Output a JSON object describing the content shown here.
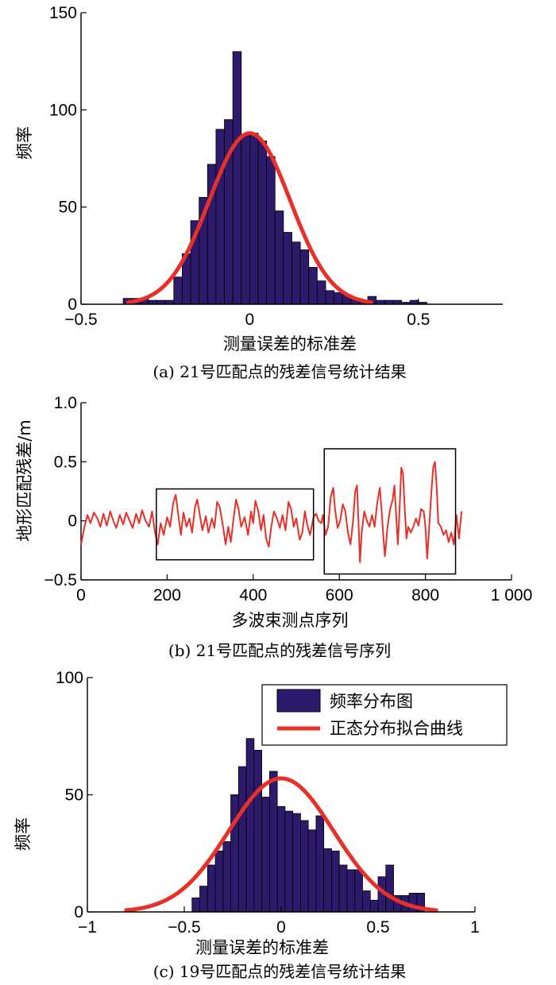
{
  "chart_data": [
    {
      "id": "a",
      "type": "bar",
      "caption": "(a) 21号匹配点的残差信号统计结果",
      "xlabel": "测量误差的标准差",
      "ylabel": "频率",
      "xlim": [
        -0.5,
        0.75
      ],
      "ylim": [
        0,
        150
      ],
      "xticks": [
        -0.5,
        0,
        0.5
      ],
      "xtick_labels": [
        "−0.5",
        "0",
        "0.5"
      ],
      "yticks": [
        0,
        50,
        100,
        150
      ],
      "ytick_labels": [
        "0",
        "50",
        "100",
        "150"
      ],
      "bin_width": 0.025,
      "bins": [
        {
          "x": -0.375,
          "y": 3
        },
        {
          "x": -0.35,
          "y": 3
        },
        {
          "x": -0.325,
          "y": 3
        },
        {
          "x": -0.3,
          "y": 2
        },
        {
          "x": -0.275,
          "y": 2
        },
        {
          "x": -0.25,
          "y": 2
        },
        {
          "x": -0.225,
          "y": 14
        },
        {
          "x": -0.2,
          "y": 26
        },
        {
          "x": -0.175,
          "y": 43
        },
        {
          "x": -0.15,
          "y": 55
        },
        {
          "x": -0.125,
          "y": 72
        },
        {
          "x": -0.1,
          "y": 90
        },
        {
          "x": -0.075,
          "y": 95
        },
        {
          "x": -0.05,
          "y": 130
        },
        {
          "x": -0.025,
          "y": 87
        },
        {
          "x": 0.0,
          "y": 88
        },
        {
          "x": 0.025,
          "y": 84
        },
        {
          "x": 0.05,
          "y": 76
        },
        {
          "x": 0.075,
          "y": 48
        },
        {
          "x": 0.1,
          "y": 37
        },
        {
          "x": 0.125,
          "y": 32
        },
        {
          "x": 0.15,
          "y": 28
        },
        {
          "x": 0.175,
          "y": 19
        },
        {
          "x": 0.2,
          "y": 12
        },
        {
          "x": 0.225,
          "y": 7
        },
        {
          "x": 0.25,
          "y": 6
        },
        {
          "x": 0.275,
          "y": 5
        },
        {
          "x": 0.3,
          "y": 3
        },
        {
          "x": 0.325,
          "y": 2
        },
        {
          "x": 0.35,
          "y": 4
        },
        {
          "x": 0.375,
          "y": 2
        },
        {
          "x": 0.4,
          "y": 2
        },
        {
          "x": 0.425,
          "y": 2
        },
        {
          "x": 0.45,
          "y": 1
        },
        {
          "x": 0.475,
          "y": 2
        },
        {
          "x": 0.5,
          "y": 1
        }
      ],
      "fit": {
        "mu": 0.0,
        "sigma": 0.12,
        "peak": 88,
        "x_range": [
          -0.36,
          0.36
        ]
      },
      "colors": {
        "bars": "#2e1a6b",
        "fit": "#e8302a"
      }
    },
    {
      "id": "b",
      "type": "line",
      "caption": "(b) 21号匹配点的残差信号序列",
      "xlabel": "多波束测点序列",
      "ylabel": "地形匹配残差/m",
      "xlim": [
        0,
        1000
      ],
      "ylim": [
        -0.5,
        1.0
      ],
      "xticks": [
        0,
        200,
        400,
        600,
        800,
        1000
      ],
      "xtick_labels": [
        "0",
        "200",
        "400",
        "600",
        "800",
        "1 000"
      ],
      "yticks": [
        -0.5,
        0,
        0.5,
        1.0
      ],
      "ytick_labels": [
        "−0.5",
        "0",
        "0.5",
        "1.0"
      ],
      "points": [
        [
          0,
          -0.2
        ],
        [
          8,
          -0.05
        ],
        [
          15,
          0.05
        ],
        [
          22,
          -0.02
        ],
        [
          30,
          0.07
        ],
        [
          38,
          0.02
        ],
        [
          45,
          -0.05
        ],
        [
          52,
          0.06
        ],
        [
          60,
          -0.04
        ],
        [
          68,
          0.08
        ],
        [
          75,
          0.0
        ],
        [
          82,
          -0.06
        ],
        [
          90,
          0.05
        ],
        [
          98,
          -0.03
        ],
        [
          105,
          0.07
        ],
        [
          112,
          0.01
        ],
        [
          120,
          -0.06
        ],
        [
          128,
          0.06
        ],
        [
          135,
          -0.02
        ],
        [
          142,
          0.09
        ],
        [
          150,
          0.0
        ],
        [
          158,
          -0.05
        ],
        [
          165,
          0.08
        ],
        [
          172,
          -0.1
        ],
        [
          178,
          -0.2
        ],
        [
          185,
          -0.02
        ],
        [
          192,
          -0.12
        ],
        [
          200,
          0.03
        ],
        [
          207,
          -0.05
        ],
        [
          214,
          0.15
        ],
        [
          220,
          0.22
        ],
        [
          226,
          0.05
        ],
        [
          232,
          -0.12
        ],
        [
          238,
          0.07
        ],
        [
          245,
          -0.05
        ],
        [
          252,
          0.02
        ],
        [
          258,
          -0.1
        ],
        [
          265,
          0.12
        ],
        [
          270,
          0.18
        ],
        [
          276,
          0.05
        ],
        [
          282,
          -0.08
        ],
        [
          290,
          0.04
        ],
        [
          296,
          -0.1
        ],
        [
          304,
          0.02
        ],
        [
          310,
          -0.06
        ],
        [
          316,
          0.16
        ],
        [
          322,
          0.12
        ],
        [
          330,
          -0.05
        ],
        [
          336,
          -0.2
        ],
        [
          342,
          -0.05
        ],
        [
          348,
          -0.18
        ],
        [
          355,
          0.04
        ],
        [
          360,
          0.18
        ],
        [
          366,
          0.1
        ],
        [
          372,
          -0.05
        ],
        [
          380,
          0.03
        ],
        [
          388,
          -0.12
        ],
        [
          395,
          0.08
        ],
        [
          400,
          -0.02
        ],
        [
          405,
          0.17
        ],
        [
          412,
          0.08
        ],
        [
          418,
          -0.08
        ],
        [
          424,
          0.05
        ],
        [
          430,
          -0.15
        ],
        [
          436,
          -0.22
        ],
        [
          442,
          -0.05
        ],
        [
          448,
          0.08
        ],
        [
          455,
          0.02
        ],
        [
          462,
          -0.06
        ],
        [
          468,
          0.05
        ],
        [
          475,
          -0.08
        ],
        [
          482,
          0.16
        ],
        [
          488,
          0.1
        ],
        [
          494,
          -0.05
        ],
        [
          500,
          0.02
        ],
        [
          508,
          -0.16
        ],
        [
          514,
          -0.1
        ],
        [
          520,
          0.08
        ],
        [
          526,
          -0.04
        ],
        [
          532,
          -0.12
        ],
        [
          540,
          0.03
        ],
        [
          546,
          0.06
        ],
        [
          552,
          0.0
        ],
        [
          558,
          -0.02
        ],
        [
          562,
          0.05
        ],
        [
          568,
          -0.12
        ],
        [
          574,
          -0.05
        ],
        [
          580,
          0.2
        ],
        [
          586,
          0.28
        ],
        [
          590,
          0.1
        ],
        [
          596,
          -0.06
        ],
        [
          602,
          0.0
        ],
        [
          608,
          0.14
        ],
        [
          614,
          0.08
        ],
        [
          620,
          -0.1
        ],
        [
          626,
          -0.2
        ],
        [
          632,
          0.0
        ],
        [
          637,
          0.25
        ],
        [
          641,
          0.3
        ],
        [
          645,
          -0.05
        ],
        [
          648,
          -0.35
        ],
        [
          652,
          -0.1
        ],
        [
          658,
          0.08
        ],
        [
          664,
          0.0
        ],
        [
          670,
          -0.05
        ],
        [
          676,
          0.05
        ],
        [
          682,
          -0.05
        ],
        [
          688,
          0.15
        ],
        [
          694,
          0.28
        ],
        [
          698,
          0.1
        ],
        [
          702,
          -0.12
        ],
        [
          706,
          -0.3
        ],
        [
          712,
          -0.05
        ],
        [
          718,
          0.1
        ],
        [
          724,
          0.18
        ],
        [
          728,
          0.3
        ],
        [
          732,
          0.05
        ],
        [
          736,
          -0.2
        ],
        [
          740,
          0.1
        ],
        [
          744,
          0.45
        ],
        [
          748,
          0.4
        ],
        [
          752,
          0.1
        ],
        [
          756,
          -0.15
        ],
        [
          760,
          -0.05
        ],
        [
          766,
          -0.1
        ],
        [
          772,
          -0.05
        ],
        [
          778,
          0.02
        ],
        [
          784,
          -0.04
        ],
        [
          790,
          0.1
        ],
        [
          796,
          0.08
        ],
        [
          800,
          -0.05
        ],
        [
          804,
          -0.32
        ],
        [
          808,
          -0.1
        ],
        [
          814,
          0.25
        ],
        [
          818,
          0.45
        ],
        [
          822,
          0.5
        ],
        [
          826,
          0.3
        ],
        [
          830,
          -0.02
        ],
        [
          836,
          -0.05
        ],
        [
          842,
          -0.12
        ],
        [
          848,
          -0.08
        ],
        [
          854,
          -0.18
        ],
        [
          860,
          -0.1
        ],
        [
          866,
          -0.2
        ],
        [
          872,
          0.05
        ],
        [
          878,
          -0.15
        ],
        [
          884,
          0.08
        ]
      ],
      "boxes": [
        {
          "x": [
            175,
            540
          ],
          "y": [
            -0.33,
            0.27
          ]
        },
        {
          "x": [
            565,
            870
          ],
          "y": [
            -0.45,
            0.61
          ]
        }
      ],
      "colors": {
        "line": "#e8302a",
        "box": "#000000"
      }
    },
    {
      "id": "c",
      "type": "bar",
      "caption": "(c) 19号匹配点的残差信号统计结果",
      "xlabel": "测量误差的标准差",
      "ylabel": "频率",
      "xlim": [
        -1,
        1
      ],
      "ylim": [
        0,
        100
      ],
      "xticks": [
        -1,
        -0.5,
        0,
        0.5,
        1
      ],
      "xtick_labels": [
        "−1",
        "−0.5",
        "0",
        "0.5",
        "1"
      ],
      "yticks": [
        0,
        50,
        100
      ],
      "ytick_labels": [
        "0",
        "50",
        "100"
      ],
      "bin_width": 0.04,
      "bins": [
        {
          "x": -0.46,
          "y": 6
        },
        {
          "x": -0.42,
          "y": 11
        },
        {
          "x": -0.38,
          "y": 20
        },
        {
          "x": -0.34,
          "y": 26
        },
        {
          "x": -0.3,
          "y": 30
        },
        {
          "x": -0.26,
          "y": 50
        },
        {
          "x": -0.22,
          "y": 62
        },
        {
          "x": -0.18,
          "y": 74
        },
        {
          "x": -0.14,
          "y": 69
        },
        {
          "x": -0.1,
          "y": 49
        },
        {
          "x": -0.06,
          "y": 60
        },
        {
          "x": -0.02,
          "y": 45
        },
        {
          "x": 0.02,
          "y": 43
        },
        {
          "x": 0.06,
          "y": 42
        },
        {
          "x": 0.1,
          "y": 39
        },
        {
          "x": 0.14,
          "y": 35
        },
        {
          "x": 0.18,
          "y": 41
        },
        {
          "x": 0.22,
          "y": 27
        },
        {
          "x": 0.26,
          "y": 26
        },
        {
          "x": 0.3,
          "y": 20
        },
        {
          "x": 0.34,
          "y": 18
        },
        {
          "x": 0.38,
          "y": 18
        },
        {
          "x": 0.42,
          "y": 9
        },
        {
          "x": 0.46,
          "y": 5
        },
        {
          "x": 0.5,
          "y": 15
        },
        {
          "x": 0.54,
          "y": 20
        },
        {
          "x": 0.58,
          "y": 7
        },
        {
          "x": 0.62,
          "y": 7
        },
        {
          "x": 0.66,
          "y": 8
        },
        {
          "x": 0.7,
          "y": 8
        }
      ],
      "fit": {
        "mu": 0.0,
        "sigma": 0.27,
        "peak": 57,
        "x_range": [
          -0.8,
          0.8
        ]
      },
      "legend": {
        "position": "top-right",
        "entries": [
          "频率分布图",
          "正态分布拟合曲线"
        ]
      },
      "colors": {
        "bars": "#2e1a6b",
        "fit": "#e8302a"
      }
    }
  ]
}
